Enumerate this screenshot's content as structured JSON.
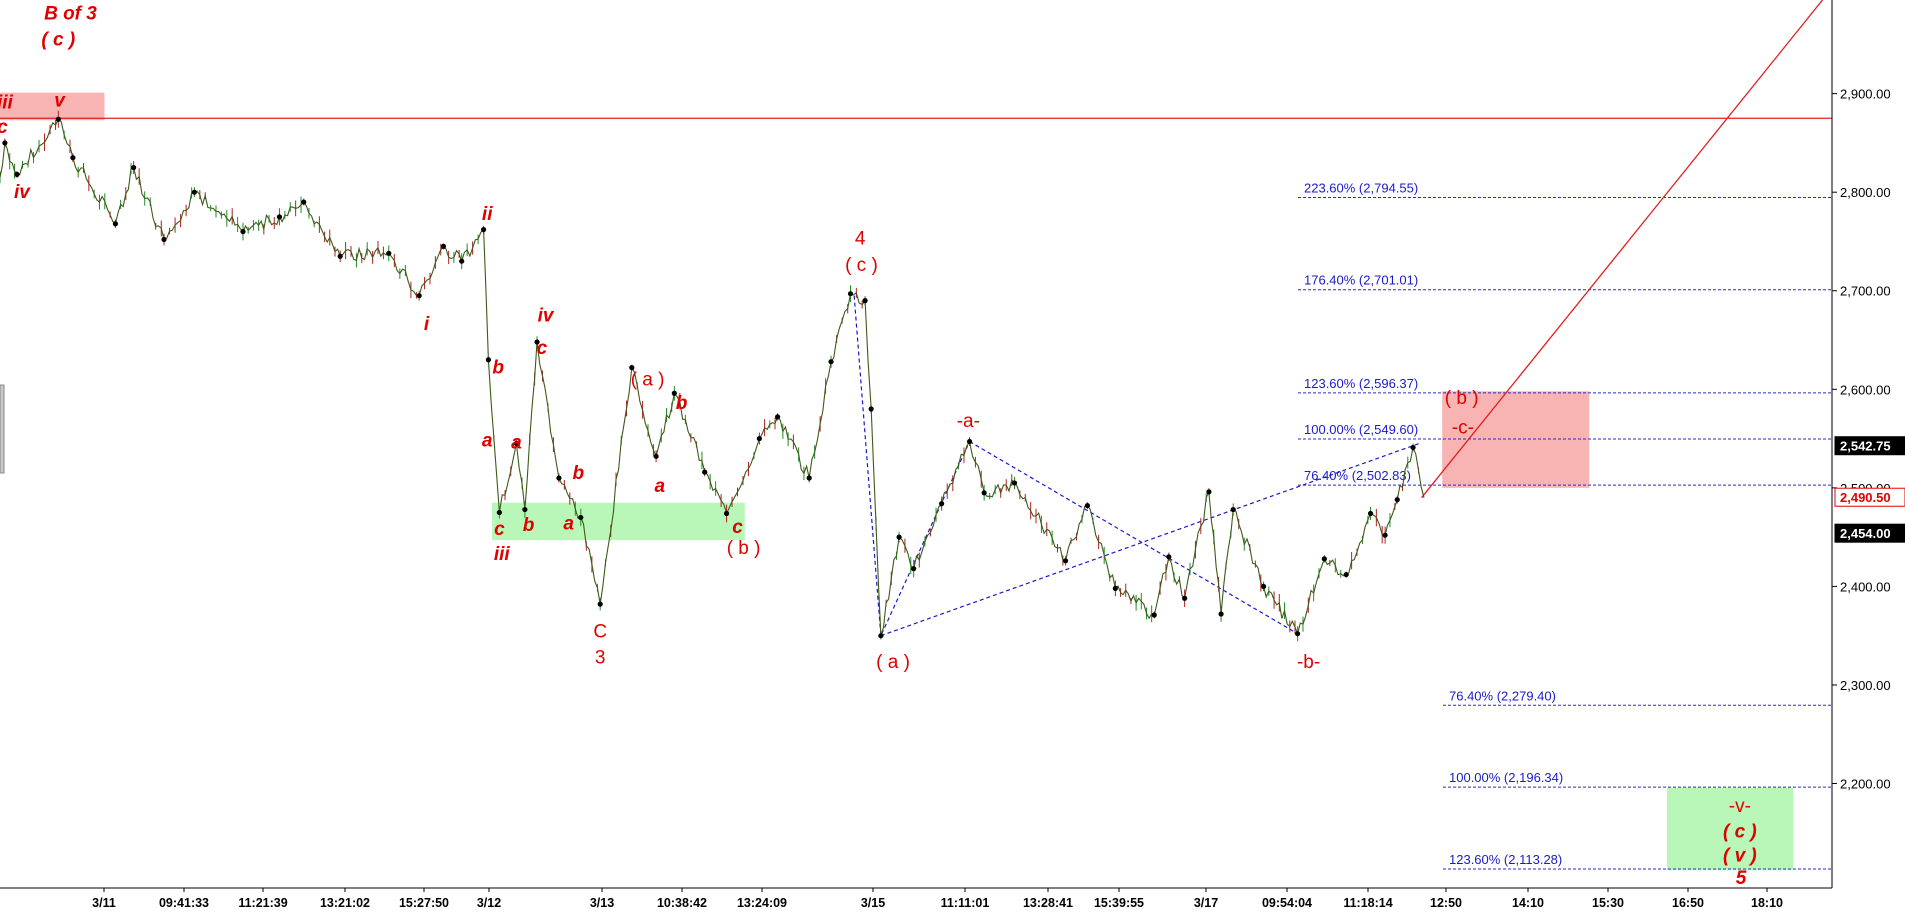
{
  "chart_data": {
    "type": "line",
    "y_axis": {
      "range": [
        2094,
        2995
      ],
      "ticks": [
        "2,900.00",
        "2,800.00",
        "2,700.00",
        "2,600.00",
        "2,500.00",
        "2,400.00",
        "2,300.00",
        "2,200.00"
      ],
      "tick_values": [
        2900,
        2800,
        2700,
        2600,
        2500,
        2400,
        2300,
        2200
      ],
      "side": "right"
    },
    "x_axis": {
      "ticks": [
        "3/11",
        "09:41:33",
        "11:21:39",
        "13:21:02",
        "15:27:50",
        "3/12",
        "3/13",
        "10:38:42",
        "13:24:09",
        "3/15",
        "11:11:01",
        "13:28:41",
        "15:39:55",
        "3/17",
        "09:54:04",
        "11:18:14",
        "12:50",
        "14:10",
        "15:30",
        "16:50",
        "18:10"
      ]
    },
    "price_tags": [
      {
        "text": "2,542.75",
        "value": 2542.75,
        "style": "black"
      },
      {
        "text": "2,490.50",
        "value": 2490.5,
        "style": "red"
      },
      {
        "text": "2,454.00",
        "value": 2454.0,
        "style": "black"
      }
    ],
    "horizontal_line": {
      "value": 2875,
      "color": "#e02020"
    },
    "fib_levels_upper": [
      {
        "label": "223.60% (2,794.55)",
        "value": 2794.55
      },
      {
        "label": "176.40% (2,701.01)",
        "value": 2701.01
      },
      {
        "label": "123.60% (2,596.37)",
        "value": 2596.37
      },
      {
        "label": "100.00% (2,549.60)",
        "value": 2549.6
      },
      {
        "label": "76.40% (2,502.83)",
        "value": 2502.83
      }
    ],
    "fib_levels_lower": [
      {
        "label": "76.40% (2,279.40)",
        "value": 2279.4
      },
      {
        "label": "100.00% (2,196.34)",
        "value": 2196.34
      },
      {
        "label": "123.60% (2,113.28)",
        "value": 2113.28
      }
    ],
    "pivots": [
      {
        "t": 0,
        "v": 2815
      },
      {
        "t": 4,
        "v": 2850
      },
      {
        "t": 14,
        "v": 2818
      },
      {
        "t": 48,
        "v": 2874
      },
      {
        "t": 60,
        "v": 2835
      },
      {
        "t": 95,
        "v": 2768
      },
      {
        "t": 110,
        "v": 2825
      },
      {
        "t": 135,
        "v": 2752
      },
      {
        "t": 160,
        "v": 2800
      },
      {
        "t": 200,
        "v": 2760
      },
      {
        "t": 230,
        "v": 2775
      },
      {
        "t": 250,
        "v": 2790
      },
      {
        "t": 280,
        "v": 2735
      },
      {
        "t": 320,
        "v": 2738
      },
      {
        "t": 345,
        "v": 2695
      },
      {
        "t": 365,
        "v": 2745
      },
      {
        "t": 380,
        "v": 2730
      },
      {
        "t": 398,
        "v": 2762
      },
      {
        "t": 402,
        "v": 2630
      },
      {
        "t": 411,
        "v": 2475
      },
      {
        "t": 425,
        "v": 2545
      },
      {
        "t": 432,
        "v": 2478
      },
      {
        "t": 442,
        "v": 2648
      },
      {
        "t": 460,
        "v": 2510
      },
      {
        "t": 478,
        "v": 2470
      },
      {
        "t": 494,
        "v": 2382
      },
      {
        "t": 520,
        "v": 2622
      },
      {
        "t": 540,
        "v": 2532
      },
      {
        "t": 555,
        "v": 2596
      },
      {
        "t": 580,
        "v": 2516
      },
      {
        "t": 598,
        "v": 2474
      },
      {
        "t": 625,
        "v": 2550
      },
      {
        "t": 640,
        "v": 2572
      },
      {
        "t": 666,
        "v": 2510
      },
      {
        "t": 684,
        "v": 2628
      },
      {
        "t": 700,
        "v": 2697
      },
      {
        "t": 712,
        "v": 2690
      },
      {
        "t": 717,
        "v": 2580
      },
      {
        "t": 725,
        "v": 2350
      },
      {
        "t": 740,
        "v": 2450
      },
      {
        "t": 752,
        "v": 2418
      },
      {
        "t": 775,
        "v": 2484
      },
      {
        "t": 798,
        "v": 2547
      },
      {
        "t": 810,
        "v": 2495
      },
      {
        "t": 835,
        "v": 2505
      },
      {
        "t": 877,
        "v": 2426
      },
      {
        "t": 895,
        "v": 2482
      },
      {
        "t": 918,
        "v": 2398
      },
      {
        "t": 950,
        "v": 2371
      },
      {
        "t": 962,
        "v": 2430
      },
      {
        "t": 975,
        "v": 2388
      },
      {
        "t": 995,
        "v": 2496
      },
      {
        "t": 1005,
        "v": 2372
      },
      {
        "t": 1015,
        "v": 2478
      },
      {
        "t": 1040,
        "v": 2400
      },
      {
        "t": 1068,
        "v": 2352
      },
      {
        "t": 1090,
        "v": 2428
      },
      {
        "t": 1108,
        "v": 2412
      },
      {
        "t": 1128,
        "v": 2474
      },
      {
        "t": 1140,
        "v": 2452
      },
      {
        "t": 1150,
        "v": 2488
      },
      {
        "t": 1163,
        "v": 2541
      },
      {
        "t": 1172,
        "v": 2490
      }
    ],
    "green_zones": [
      {
        "t0": 405,
        "t1": 613,
        "v0": 2447,
        "v1": 2485
      },
      {
        "t0": 1372,
        "t1": 1476,
        "v0": 2112,
        "v1": 2196
      }
    ],
    "red_zones": [
      {
        "t0": 0,
        "t1": 86,
        "v0": 2873,
        "v1": 2901
      },
      {
        "t0": 1187,
        "t1": 1308,
        "v0": 2500,
        "v1": 2598
      }
    ],
    "trend_lines": [
      {
        "color": "#e02020",
        "dash": false,
        "points": [
          [
            1170,
            2490
          ],
          [
            1500,
            2995
          ]
        ]
      },
      {
        "color": "#1a1acc",
        "dash": true,
        "points": [
          [
            703,
            2695
          ],
          [
            725,
            2350
          ],
          [
            798,
            2547
          ]
        ]
      },
      {
        "color": "#1a1acc",
        "dash": true,
        "points": [
          [
            725,
            2350
          ],
          [
            1168,
            2545
          ]
        ]
      },
      {
        "color": "#1a1acc",
        "dash": true,
        "points": [
          [
            798,
            2547
          ],
          [
            1068,
            2352
          ]
        ]
      }
    ],
    "wave_labels": [
      {
        "text": "B of 3",
        "t": 58,
        "v": 2975,
        "style": "it"
      },
      {
        "text": "( c )",
        "t": 48,
        "v": 2949,
        "style": "it"
      },
      {
        "text": "v",
        "t": 49,
        "v": 2887,
        "style": "it"
      },
      {
        "text": "iii",
        "t": 4,
        "v": 2885,
        "style": "it"
      },
      {
        "text": "c",
        "t": 2,
        "v": 2860,
        "style": "it"
      },
      {
        "text": "iv",
        "t": 18,
        "v": 2794,
        "style": "it"
      },
      {
        "text": "ii",
        "t": 401,
        "v": 2772,
        "style": "it"
      },
      {
        "text": "i",
        "t": 351,
        "v": 2660,
        "style": "it"
      },
      {
        "text": "iv",
        "t": 449,
        "v": 2669,
        "style": "it"
      },
      {
        "text": "c",
        "t": 446,
        "v": 2636,
        "style": "it"
      },
      {
        "text": "b",
        "t": 410,
        "v": 2616,
        "style": "it"
      },
      {
        "text": "a",
        "t": 401,
        "v": 2542,
        "style": "it"
      },
      {
        "text": "a",
        "t": 425,
        "v": 2540,
        "style": "it"
      },
      {
        "text": "b",
        "t": 476,
        "v": 2509,
        "style": "it"
      },
      {
        "text": "c",
        "t": 411,
        "v": 2452,
        "style": "it"
      },
      {
        "text": "b",
        "t": 435,
        "v": 2456,
        "style": "it"
      },
      {
        "text": "a",
        "t": 468,
        "v": 2458,
        "style": "it"
      },
      {
        "text": "iii",
        "t": 413,
        "v": 2427,
        "style": "it"
      },
      {
        "text": "C",
        "t": 494,
        "v": 2348,
        "style": "n"
      },
      {
        "text": "3",
        "t": 494,
        "v": 2322,
        "style": "n"
      },
      {
        "text": "( a )",
        "t": 533,
        "v": 2604,
        "style": "n"
      },
      {
        "text": "b",
        "t": 561,
        "v": 2580,
        "style": "it"
      },
      {
        "text": "a",
        "t": 543,
        "v": 2496,
        "style": "it"
      },
      {
        "text": "c",
        "t": 607,
        "v": 2454,
        "style": "it"
      },
      {
        "text": "( b )",
        "t": 612,
        "v": 2433,
        "style": "n"
      },
      {
        "text": "4",
        "t": 708,
        "v": 2747,
        "style": "n"
      },
      {
        "text": "( c )",
        "t": 709,
        "v": 2720,
        "style": "n"
      },
      {
        "text": "( a )",
        "t": 735,
        "v": 2317,
        "style": "n"
      },
      {
        "text": "-a-",
        "t": 797,
        "v": 2562,
        "style": "n"
      },
      {
        "text": "-b-",
        "t": 1077,
        "v": 2317,
        "style": "n"
      },
      {
        "text": "( b )",
        "t": 1203,
        "v": 2585,
        "style": "n"
      },
      {
        "text": "-c-",
        "t": 1204,
        "v": 2555,
        "style": "n"
      },
      {
        "text": "-v-",
        "t": 1432,
        "v": 2171,
        "style": "n"
      },
      {
        "text": "( c )",
        "t": 1432,
        "v": 2145,
        "style": "it"
      },
      {
        "text": "( v )",
        "t": 1432,
        "v": 2121,
        "style": "it"
      },
      {
        "text": "5",
        "t": 1433,
        "v": 2098,
        "style": "it"
      }
    ]
  }
}
